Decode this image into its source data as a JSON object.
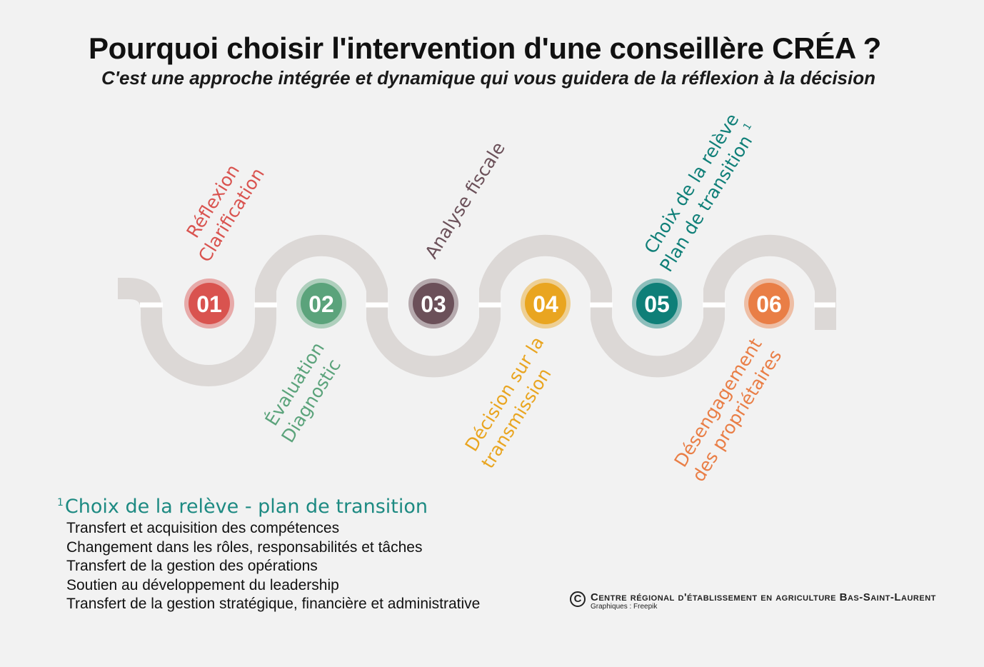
{
  "title": "Pourquoi choisir l'intervention d'une conseillère CRÉA ?",
  "subtitle": "C'est une approche intégrée et dynamique qui vous guidera de la réflexion à la décision",
  "steps": [
    {
      "number": "01",
      "line1": "Réflexion",
      "line2": "Clarification",
      "color": "#d9534f"
    },
    {
      "number": "02",
      "line1": "Évaluation",
      "line2": "Diagnostic",
      "color": "#5ba37b"
    },
    {
      "number": "03",
      "line1": "Analyse fiscale",
      "line2": "",
      "color": "#6b5059"
    },
    {
      "number": "04",
      "line1": "Décision sur la",
      "line2": "transmission",
      "color": "#e9a520"
    },
    {
      "number": "05",
      "line1": "Choix de la relève",
      "line2": "Plan de transition",
      "note": "1",
      "color": "#0f7f78"
    },
    {
      "number": "06",
      "line1": "Désengagement",
      "line2": "des propriétaires",
      "color": "#e97e46"
    }
  ],
  "colors": {
    "path": "#dcd8d6",
    "path_center": "#ffffff"
  },
  "footnote": {
    "marker": "1",
    "heading": "Choix de la relève  - plan de transition",
    "items": [
      "Transfert et acquisition des compétences",
      "Changement dans les rôles, responsabilités et tâches",
      "Transfert de la gestion des opérations",
      "Soutien au développement du leadership",
      "Transfert de la gestion stratégique, financière et administrative"
    ]
  },
  "credit": {
    "symbol": "C",
    "organization": "Centre régional d'établissement en agriculture Bas-Saint-Laurent",
    "graphics": "Graphiques : Freepik"
  }
}
